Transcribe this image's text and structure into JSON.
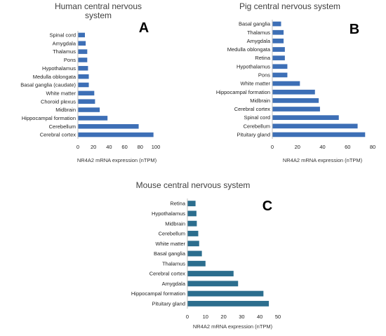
{
  "chart_data": [
    {
      "type": "bar",
      "orientation": "horizontal",
      "panel": "A",
      "title": "Human central nervous system",
      "title_lines": [
        "Human central nervous",
        "system"
      ],
      "xlabel": "NR4A2 mRNA expression (nTPM)",
      "xlim": [
        0,
        100
      ],
      "xticks": [
        0,
        20,
        40,
        60,
        80,
        100
      ],
      "categories": [
        "Spinal cord",
        "Amygdala",
        "Thalamus",
        "Pons",
        "Hypothalamus",
        "Medulla oblongata",
        "Basal ganglia (caudate)",
        "White matter",
        "Choroid plexus",
        "Midbrain",
        "Hippocampal formation",
        "Cerebellum",
        "Cerebral cortex"
      ],
      "values": [
        9,
        10,
        12,
        12,
        13,
        14,
        14,
        21,
        22,
        28,
        38,
        78,
        97
      ],
      "color": "#3d6fb6"
    },
    {
      "type": "bar",
      "orientation": "horizontal",
      "panel": "B",
      "title": "Pig central nervous system",
      "title_lines": [
        "Pig central nervous system"
      ],
      "xlabel": "NR4A2 mRNA expression (nTPM)",
      "xlim": [
        0,
        80
      ],
      "xticks": [
        0,
        20,
        40,
        60,
        80
      ],
      "categories": [
        "Basal ganglia",
        "Thalamus",
        "Amygdala",
        "Medulla oblongata",
        "Retina",
        "Hypothalamus",
        "Pons",
        "White matter",
        "Hippocampal formation",
        "Midbrain",
        "Cerebral cortex",
        "Spinal cord",
        "Cerebellum",
        "Pituitary gland"
      ],
      "values": [
        7,
        9,
        9,
        10,
        10,
        12,
        12,
        22,
        34,
        37,
        38,
        53,
        68,
        74
      ],
      "color": "#3d6fb6"
    },
    {
      "type": "bar",
      "orientation": "horizontal",
      "panel": "C",
      "title": "Mouse central nervous system",
      "title_lines": [
        "Mouse central nervous system"
      ],
      "xlabel": "NR4A2 mRNA expression (nTPM)",
      "xlim": [
        0,
        50
      ],
      "xticks": [
        0,
        10,
        20,
        30,
        40,
        50
      ],
      "categories": [
        "Retina",
        "Hypothalamus",
        "Midbrain",
        "Cerebellum",
        "White matter",
        "Basal ganglia",
        "Thalamus",
        "Cerebral cortex",
        "Amygdala",
        "Hippocampal formation",
        "Pituitary gland"
      ],
      "values": [
        4.5,
        5,
        5.2,
        6,
        6.5,
        8,
        10,
        25.5,
        28,
        42,
        45
      ],
      "color": "#2c6e8e"
    }
  ]
}
